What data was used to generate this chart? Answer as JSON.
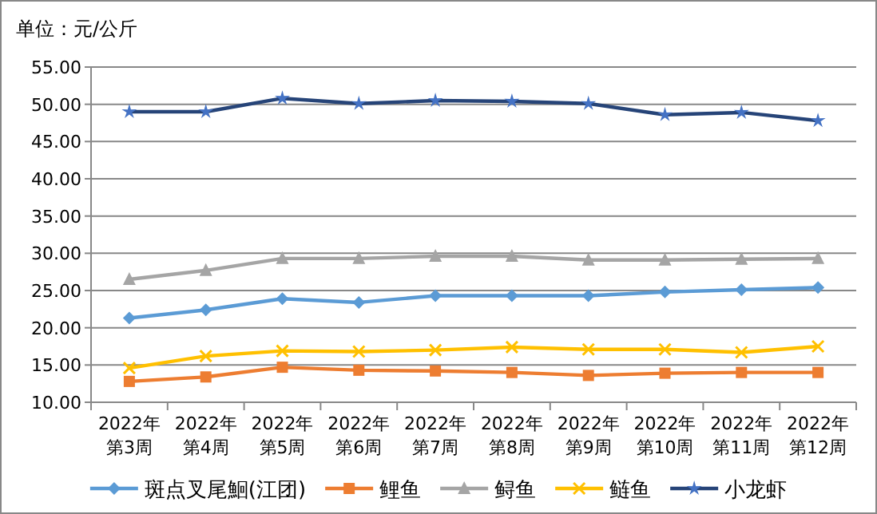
{
  "chart_data": {
    "type": "line",
    "ylabel": "单位：元/公斤",
    "categories": [
      "2022年第3周",
      "2022年第4周",
      "2022年第5周",
      "2022年第6周",
      "2022年第7周",
      "2022年第8周",
      "2022年第9周",
      "2022年第10周",
      "2022年第11周",
      "2022年第12周"
    ],
    "series": [
      {
        "name": "斑点叉尾鮰(江团)",
        "color": "#5b9bd5",
        "marker": "diamond",
        "values": [
          21.3,
          22.4,
          23.9,
          23.4,
          24.3,
          24.3,
          24.3,
          24.8,
          25.1,
          25.4
        ]
      },
      {
        "name": "鲤鱼",
        "color": "#ed7d31",
        "marker": "square",
        "values": [
          12.8,
          13.4,
          14.7,
          14.3,
          14.2,
          14.0,
          13.6,
          13.9,
          14.0,
          14.0
        ]
      },
      {
        "name": "鲟鱼",
        "color": "#a5a5a5",
        "marker": "triangle",
        "values": [
          26.5,
          27.7,
          29.3,
          29.3,
          29.6,
          29.6,
          29.1,
          29.1,
          29.2,
          29.3
        ]
      },
      {
        "name": "鲢鱼",
        "color": "#ffc000",
        "marker": "cross",
        "values": [
          14.6,
          16.2,
          16.9,
          16.8,
          17.0,
          17.4,
          17.1,
          17.1,
          16.7,
          17.5
        ]
      },
      {
        "name": "小龙虾",
        "color": "#264478",
        "marker": "star",
        "values": [
          49.0,
          49.0,
          50.8,
          50.1,
          50.5,
          50.4,
          50.1,
          48.6,
          48.9,
          47.8
        ]
      }
    ],
    "ylim": [
      10,
      55
    ],
    "yticks": [
      {
        "value": 10,
        "label": "10.00"
      },
      {
        "value": 15,
        "label": "15.00"
      },
      {
        "value": 20,
        "label": "20.00"
      },
      {
        "value": 25,
        "label": "25.00"
      },
      {
        "value": 30,
        "label": "30.00"
      },
      {
        "value": 35,
        "label": "35.00"
      },
      {
        "value": 40,
        "label": "40.00"
      },
      {
        "value": 45,
        "label": "45.00"
      },
      {
        "value": 50,
        "label": "50.00"
      },
      {
        "value": 55,
        "label": "55.00"
      }
    ],
    "grid": "y",
    "legend": "bottom",
    "line_style": "solid"
  }
}
